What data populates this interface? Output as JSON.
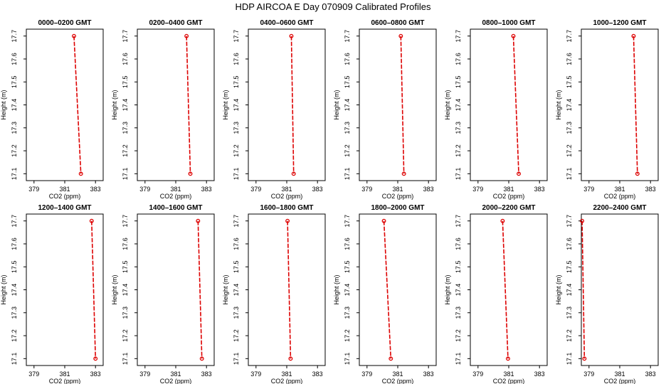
{
  "title": "HDP  AIRCOA E  Day 070909  Calibrated Profiles",
  "chart_data": {
    "type": "line",
    "xlabel": "CO2 (ppm)",
    "ylabel": "Height (m)",
    "xlim": [
      378.5,
      383.5
    ],
    "ylim": [
      17.07,
      17.73
    ],
    "xticks": [
      "379",
      "381",
      "383"
    ],
    "yticks": [
      "17.1",
      "17.2",
      "17.3",
      "17.4",
      "17.5",
      "17.6",
      "17.7"
    ],
    "series_color": "#dd0000",
    "panels": [
      {
        "title": "0000–0200 GMT",
        "points": [
          {
            "x": 381.6,
            "y": 17.7
          },
          {
            "x": 382.05,
            "y": 17.1
          }
        ]
      },
      {
        "title": "0200–0400 GMT",
        "points": [
          {
            "x": 381.7,
            "y": 17.7
          },
          {
            "x": 381.95,
            "y": 17.1
          }
        ]
      },
      {
        "title": "0400–0600 GMT",
        "points": [
          {
            "x": 381.3,
            "y": 17.7
          },
          {
            "x": 381.45,
            "y": 17.1
          }
        ]
      },
      {
        "title": "0600–0800 GMT",
        "points": [
          {
            "x": 381.2,
            "y": 17.7
          },
          {
            "x": 381.4,
            "y": 17.1
          }
        ]
      },
      {
        "title": "0800–1000 GMT",
        "points": [
          {
            "x": 381.3,
            "y": 17.7
          },
          {
            "x": 381.65,
            "y": 17.1
          }
        ]
      },
      {
        "title": "1000–1200 GMT",
        "points": [
          {
            "x": 381.9,
            "y": 17.7
          },
          {
            "x": 382.15,
            "y": 17.1
          }
        ]
      },
      {
        "title": "1200–1400 GMT",
        "points": [
          {
            "x": 382.75,
            "y": 17.7
          },
          {
            "x": 383.0,
            "y": 17.1
          }
        ]
      },
      {
        "title": "1400–1600 GMT",
        "points": [
          {
            "x": 382.45,
            "y": 17.7
          },
          {
            "x": 382.7,
            "y": 17.1
          }
        ]
      },
      {
        "title": "1600–1800 GMT",
        "points": [
          {
            "x": 381.05,
            "y": 17.7
          },
          {
            "x": 381.25,
            "y": 17.1
          }
        ]
      },
      {
        "title": "1800–2000 GMT",
        "points": [
          {
            "x": 380.1,
            "y": 17.7
          },
          {
            "x": 380.55,
            "y": 17.1
          }
        ]
      },
      {
        "title": "2000–2200 GMT",
        "points": [
          {
            "x": 380.6,
            "y": 17.7
          },
          {
            "x": 380.95,
            "y": 17.1
          }
        ]
      },
      {
        "title": "2200–2400 GMT",
        "points": [
          {
            "x": 378.55,
            "y": 17.7
          },
          {
            "x": 378.7,
            "y": 17.1
          }
        ]
      }
    ]
  }
}
